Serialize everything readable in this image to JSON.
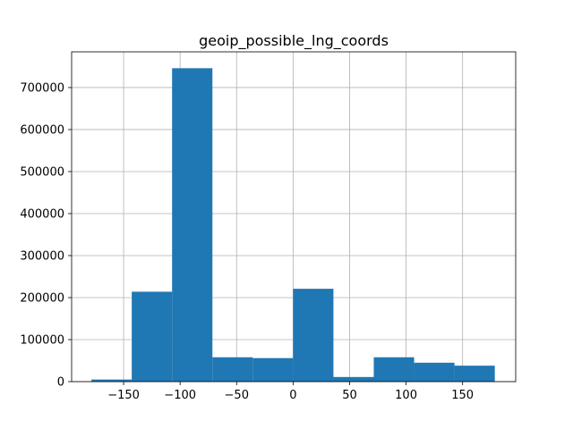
{
  "chart_data": {
    "type": "bar",
    "title": "geoip_possible_lng_coords",
    "xlabel": "",
    "ylabel": "",
    "xlim": [
      -196,
      197
    ],
    "ylim": [
      0,
      785000
    ],
    "grid": true,
    "legend": "none",
    "bar_color": "#1f77b4",
    "x_ticks": [
      {
        "value": -150,
        "label": "−150"
      },
      {
        "value": -100,
        "label": "−100"
      },
      {
        "value": -50,
        "label": "−50"
      },
      {
        "value": 0,
        "label": "0"
      },
      {
        "value": 50,
        "label": "50"
      },
      {
        "value": 100,
        "label": "100"
      },
      {
        "value": 150,
        "label": "150"
      }
    ],
    "y_ticks": [
      {
        "value": 0,
        "label": "0"
      },
      {
        "value": 100000,
        "label": "100000"
      },
      {
        "value": 200000,
        "label": "200000"
      },
      {
        "value": 300000,
        "label": "300000"
      },
      {
        "value": 400000,
        "label": "400000"
      },
      {
        "value": 500000,
        "label": "500000"
      },
      {
        "value": 600000,
        "label": "600000"
      },
      {
        "value": 700000,
        "label": "700000"
      }
    ],
    "bins": [
      {
        "x0": -178.5,
        "x1": -142.8,
        "value": 5000
      },
      {
        "x0": -142.8,
        "x1": -107.1,
        "value": 214000
      },
      {
        "x0": -107.1,
        "x1": -71.4,
        "value": 746000
      },
      {
        "x0": -71.4,
        "x1": -35.7,
        "value": 58000
      },
      {
        "x0": -35.7,
        "x1": 0.0,
        "value": 56000
      },
      {
        "x0": 0.0,
        "x1": 35.7,
        "value": 221000
      },
      {
        "x0": 35.7,
        "x1": 71.4,
        "value": 11000
      },
      {
        "x0": 71.4,
        "x1": 107.1,
        "value": 58000
      },
      {
        "x0": 107.1,
        "x1": 142.8,
        "value": 45000
      },
      {
        "x0": 142.8,
        "x1": 178.5,
        "value": 38000
      }
    ]
  }
}
